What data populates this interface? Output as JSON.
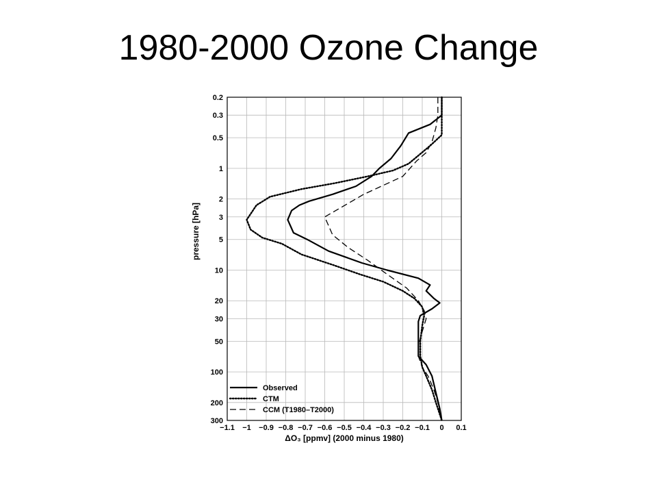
{
  "slide": {
    "title": "1980-2000 Ozone Change"
  },
  "chart_data": {
    "type": "line",
    "title": "",
    "xlabel": "ΔO₃ [ppmv] (2000 minus 1980)",
    "ylabel": "pressure [hPa]",
    "xlim": [
      -1.1,
      0.1
    ],
    "ylim": [
      300,
      0.2
    ],
    "y_scale": "log",
    "grid": true,
    "legend_position": "bottom-left",
    "x_ticks": [
      -1.1,
      -1,
      -0.9,
      -0.8,
      -0.7,
      -0.6,
      -0.5,
      -0.4,
      -0.3,
      -0.2,
      -0.1,
      0,
      0.1
    ],
    "x_tick_labels": [
      "−1.1",
      "−1",
      "−0.9",
      "−0.8",
      "−0.7",
      "−0.6",
      "−0.5",
      "−0.4",
      "−0.3",
      "−0.2",
      "−0.1",
      "0",
      "0.1"
    ],
    "y_ticks": [
      0.2,
      0.3,
      0.5,
      1,
      2,
      3,
      5,
      10,
      20,
      30,
      50,
      100,
      200,
      300
    ],
    "y_tick_labels": [
      "0.2",
      "0.3",
      "0.5",
      "1",
      "2",
      "3",
      "5",
      "10",
      "20",
      "30",
      "50",
      "100",
      "200",
      "300"
    ],
    "series": [
      {
        "name": "Observed",
        "style": "solid",
        "points": [
          [
            0,
            0.2
          ],
          [
            0,
            0.3
          ],
          [
            -0.06,
            0.37
          ],
          [
            -0.17,
            0.45
          ],
          [
            -0.21,
            0.6
          ],
          [
            -0.26,
            0.8
          ],
          [
            -0.32,
            1.0
          ],
          [
            -0.36,
            1.2
          ],
          [
            -0.44,
            1.5
          ],
          [
            -0.56,
            1.8
          ],
          [
            -0.68,
            2.1
          ],
          [
            -0.73,
            2.3
          ],
          [
            -0.77,
            2.6
          ],
          [
            -0.79,
            3.2
          ],
          [
            -0.76,
            4.3
          ],
          [
            -0.69,
            5.0
          ],
          [
            -0.58,
            6.5
          ],
          [
            -0.41,
            8.5
          ],
          [
            -0.28,
            10
          ],
          [
            -0.12,
            12
          ],
          [
            -0.06,
            14
          ],
          [
            -0.08,
            16
          ],
          [
            -0.04,
            19
          ],
          [
            -0.01,
            21
          ],
          [
            -0.05,
            24
          ],
          [
            -0.11,
            28
          ],
          [
            -0.12,
            32
          ],
          [
            -0.12,
            45
          ],
          [
            -0.12,
            60
          ],
          [
            -0.12,
            70
          ],
          [
            -0.08,
            85
          ],
          [
            -0.05,
            110
          ],
          [
            -0.03,
            160
          ],
          [
            -0.01,
            230
          ],
          [
            0,
            300
          ]
        ]
      },
      {
        "name": "CTM",
        "style": "dotted",
        "points": [
          [
            0,
            0.2
          ],
          [
            0,
            0.3
          ],
          [
            0,
            0.47
          ],
          [
            -0.06,
            0.6
          ],
          [
            -0.17,
            0.9
          ],
          [
            -0.25,
            1.05
          ],
          [
            -0.38,
            1.2
          ],
          [
            -0.55,
            1.4
          ],
          [
            -0.72,
            1.6
          ],
          [
            -0.88,
            1.9
          ],
          [
            -0.95,
            2.3
          ],
          [
            -1.0,
            3.2
          ],
          [
            -0.98,
            4.0
          ],
          [
            -0.92,
            4.8
          ],
          [
            -0.82,
            5.5
          ],
          [
            -0.72,
            7.0
          ],
          [
            -0.55,
            9.0
          ],
          [
            -0.42,
            11
          ],
          [
            -0.3,
            13
          ],
          [
            -0.2,
            16
          ],
          [
            -0.14,
            19
          ],
          [
            -0.1,
            23
          ],
          [
            -0.09,
            28
          ],
          [
            -0.1,
            35
          ],
          [
            -0.11,
            50
          ],
          [
            -0.11,
            70
          ],
          [
            -0.1,
            90
          ],
          [
            -0.08,
            110
          ],
          [
            -0.05,
            150
          ],
          [
            -0.03,
            200
          ],
          [
            0,
            300
          ]
        ]
      },
      {
        "name": "CCM (T1980–T2000)",
        "style": "dashed",
        "points": [
          [
            -0.02,
            0.2
          ],
          [
            -0.02,
            0.3
          ],
          [
            -0.03,
            0.4
          ],
          [
            -0.05,
            0.55
          ],
          [
            -0.08,
            0.7
          ],
          [
            -0.13,
            0.85
          ],
          [
            -0.2,
            1.2
          ],
          [
            -0.4,
            1.8
          ],
          [
            -0.6,
            3.0
          ],
          [
            -0.56,
            4.5
          ],
          [
            -0.48,
            6.0
          ],
          [
            -0.38,
            8.0
          ],
          [
            -0.28,
            11
          ],
          [
            -0.18,
            15
          ],
          [
            -0.12,
            20
          ],
          [
            -0.09,
            25
          ],
          [
            -0.08,
            30
          ],
          [
            -0.1,
            40
          ],
          [
            -0.12,
            55
          ],
          [
            -0.12,
            70
          ],
          [
            -0.1,
            90
          ],
          [
            -0.07,
            110
          ],
          [
            -0.04,
            150
          ],
          [
            -0.02,
            200
          ],
          [
            0,
            300
          ]
        ]
      }
    ]
  }
}
